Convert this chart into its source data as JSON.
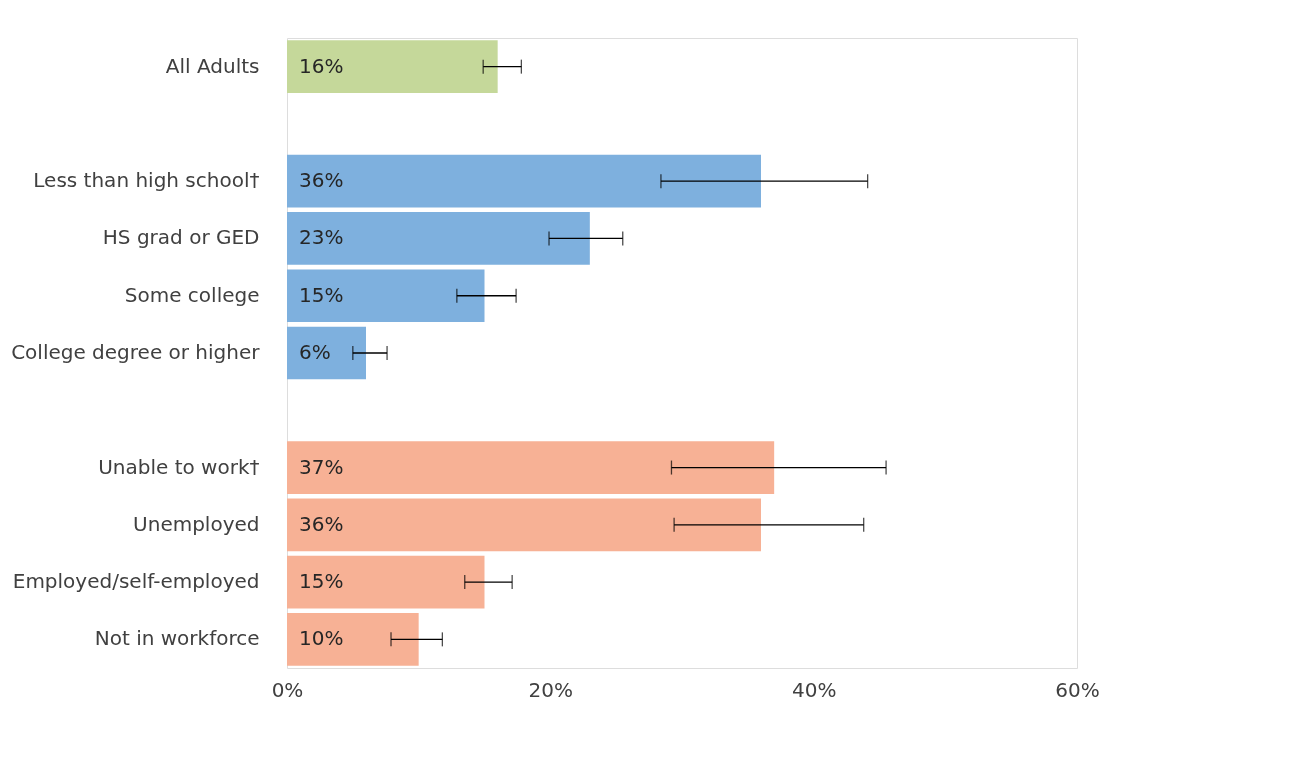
{
  "chart_data": {
    "type": "bar",
    "orientation": "horizontal",
    "categories": [
      "All Adults",
      null,
      "Less than high school†",
      "HS grad or GED",
      "Some college",
      "College degree or higher",
      null,
      "Unable to work†",
      "Unemployed",
      "Employed/self-employed",
      "Not in workforce"
    ],
    "values": [
      16,
      null,
      36,
      23,
      15,
      6,
      null,
      37,
      36,
      15,
      10
    ],
    "value_labels": [
      "16%",
      null,
      "36%",
      "23%",
      "15%",
      "6%",
      null,
      "37%",
      "36%",
      "15%",
      "10%"
    ],
    "errors": [
      [
        14.9,
        17.8
      ],
      null,
      [
        28.4,
        44.1
      ],
      [
        19.9,
        25.5
      ],
      [
        12.9,
        17.4
      ],
      [
        5.0,
        7.6
      ],
      null,
      [
        29.2,
        45.5
      ],
      [
        29.4,
        43.8
      ],
      [
        13.5,
        17.1
      ],
      [
        7.9,
        11.8
      ]
    ],
    "colors": [
      "#c5d89a",
      null,
      "#7eb0de",
      "#7eb0de",
      "#7eb0de",
      "#7eb0de",
      null,
      "#f7b195",
      "#f7b195",
      "#f7b195",
      "#f7b195"
    ],
    "xlim": [
      0,
      60
    ],
    "xticks": [
      {
        "value": 0,
        "label": "0%"
      },
      {
        "value": 20,
        "label": "20%"
      },
      {
        "value": 40,
        "label": "40%"
      },
      {
        "value": 60,
        "label": "60%"
      }
    ],
    "grid": false
  }
}
